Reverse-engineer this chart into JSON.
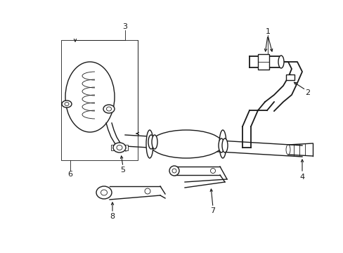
{
  "background_color": "#ffffff",
  "line_color": "#1a1a1a",
  "fig_width": 4.89,
  "fig_height": 3.6,
  "dpi": 100,
  "lw": 1.0,
  "tlw": 0.6,
  "fs": 8
}
